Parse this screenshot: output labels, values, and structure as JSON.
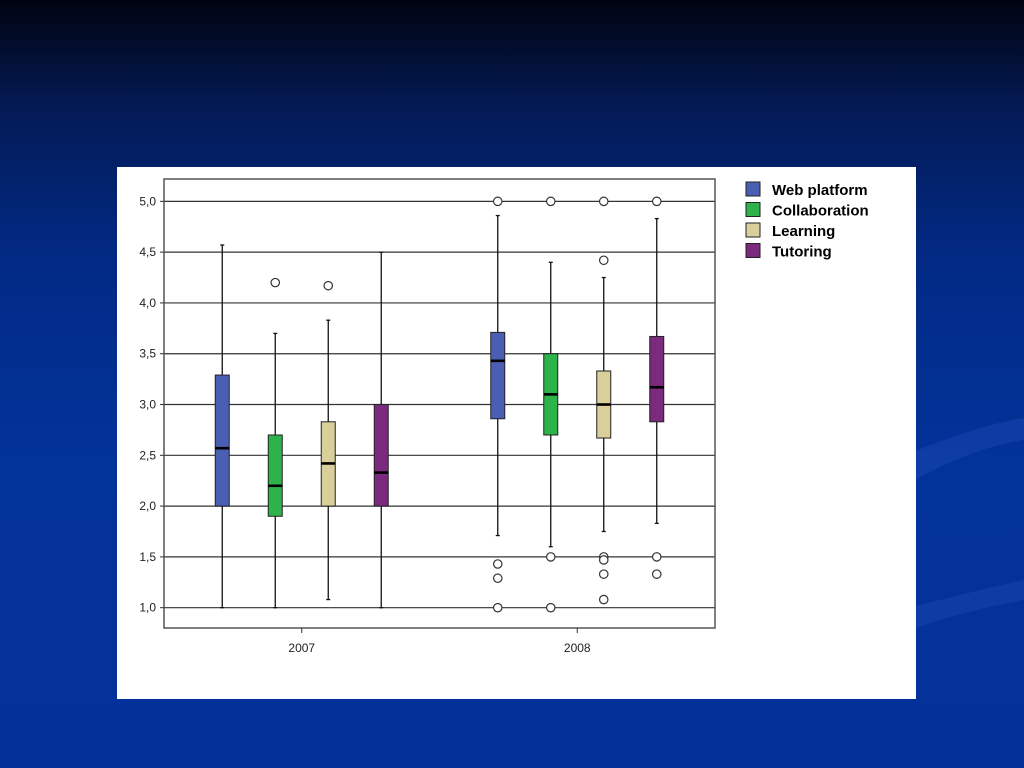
{
  "chart_data": {
    "type": "boxplot",
    "categories": [
      "2007",
      "2008"
    ],
    "ylim": [
      0.8,
      5.22
    ],
    "yticks": [
      1.0,
      1.5,
      2.0,
      2.5,
      3.0,
      3.5,
      4.0,
      4.5,
      5.0
    ],
    "ytick_labels": [
      "1,0",
      "1,5",
      "2,0",
      "2,5",
      "3,0",
      "3,5",
      "4,0",
      "4,5",
      "5,0"
    ],
    "grid": true,
    "legend_position": "right-top",
    "series": [
      {
        "name": "Web platform",
        "color": "#4a5fb4",
        "boxes": [
          {
            "category": "2007",
            "min": 1.0,
            "q1": 2.0,
            "median": 2.57,
            "q3": 3.29,
            "max": 4.57,
            "outliers": []
          },
          {
            "category": "2008",
            "min": 1.71,
            "q1": 2.86,
            "median": 3.43,
            "q3": 3.71,
            "max": 4.86,
            "outliers": [
              5.0,
              1.43,
              1.29,
              1.0
            ]
          }
        ]
      },
      {
        "name": "Collaboration",
        "color": "#2db34a",
        "boxes": [
          {
            "category": "2007",
            "min": 1.0,
            "q1": 1.9,
            "median": 2.2,
            "q3": 2.7,
            "max": 3.7,
            "outliers": [
              4.2
            ]
          },
          {
            "category": "2008",
            "min": 1.6,
            "q1": 2.7,
            "median": 3.1,
            "q3": 3.5,
            "max": 4.4,
            "outliers": [
              5.0,
              1.5,
              1.0
            ]
          }
        ]
      },
      {
        "name": "Learning",
        "color": "#d8cf9a",
        "boxes": [
          {
            "category": "2007",
            "min": 1.08,
            "q1": 2.0,
            "median": 2.42,
            "q3": 2.83,
            "max": 3.83,
            "outliers": [
              4.17
            ]
          },
          {
            "category": "2008",
            "min": 1.75,
            "q1": 2.67,
            "median": 3.0,
            "q3": 3.33,
            "max": 4.25,
            "outliers": [
              5.0,
              4.42,
              1.5,
              1.47,
              1.33,
              1.08
            ]
          }
        ]
      },
      {
        "name": "Tutoring",
        "color": "#7b2a7e",
        "boxes": [
          {
            "category": "2007",
            "min": 1.0,
            "q1": 2.0,
            "median": 2.33,
            "q3": 3.0,
            "max": 4.5,
            "outliers": []
          },
          {
            "category": "2008",
            "min": 1.83,
            "q1": 2.83,
            "median": 3.17,
            "q3": 3.67,
            "max": 4.83,
            "outliers": [
              5.0,
              1.5,
              1.33
            ]
          }
        ]
      }
    ]
  }
}
